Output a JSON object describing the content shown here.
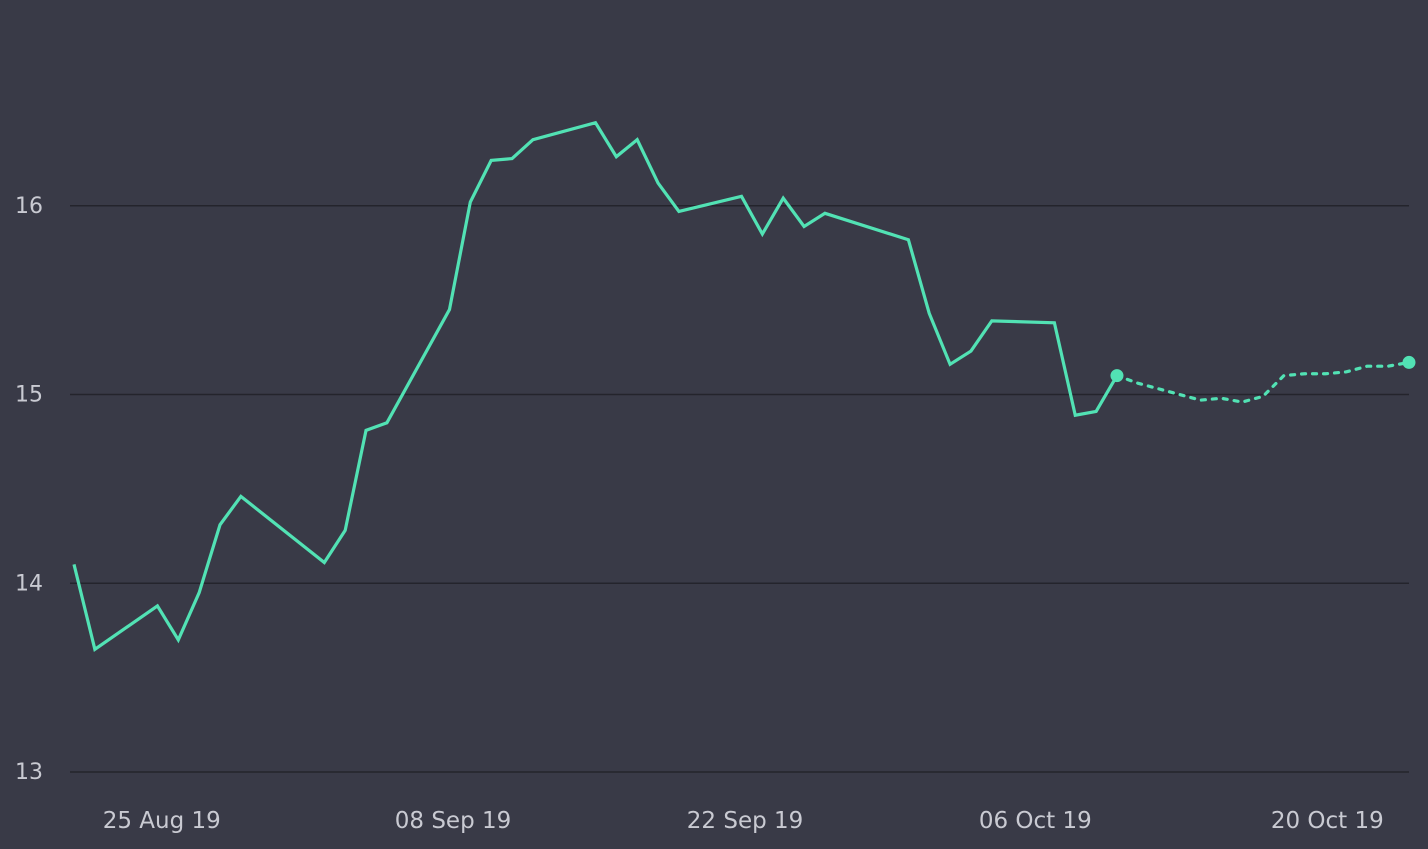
{
  "colors": {
    "background": "#393a47",
    "gridline": "#24242c",
    "series": "#52e2b4",
    "tick_text": "#c9cad2"
  },
  "chart_data": {
    "type": "line",
    "title": "",
    "xlabel": "",
    "ylabel": "",
    "ylim": [
      13,
      17
    ],
    "xlim": [
      "2019-08-23",
      "2019-10-26"
    ],
    "grid": true,
    "legend": "none",
    "yticks": [
      13,
      14,
      15,
      16
    ],
    "ytick_labels": [
      "13",
      "14",
      "15",
      "16"
    ],
    "xticks": [
      "2019-08-25",
      "2019-09-08",
      "2019-09-22",
      "2019-10-06",
      "2019-10-20"
    ],
    "xtick_labels": [
      "25 Aug 19",
      "08 Sep 19",
      "22 Sep 19",
      "06 Oct 19",
      "20 Oct 19"
    ],
    "series": [
      {
        "style": "solid",
        "x": [
          "2019-08-23",
          "2019-08-24",
          "2019-08-27",
          "2019-08-28",
          "2019-08-29",
          "2019-08-30",
          "2019-08-31",
          "2019-09-04",
          "2019-09-05",
          "2019-09-06",
          "2019-09-07",
          "2019-09-10",
          "2019-09-11",
          "2019-09-12",
          "2019-09-13",
          "2019-09-14",
          "2019-09-17",
          "2019-09-18",
          "2019-09-19",
          "2019-09-20",
          "2019-09-21",
          "2019-09-24",
          "2019-09-25",
          "2019-09-26",
          "2019-09-27",
          "2019-09-28",
          "2019-10-02",
          "2019-10-03",
          "2019-10-04",
          "2019-10-05",
          "2019-10-06",
          "2019-10-09",
          "2019-10-10",
          "2019-10-11",
          "2019-10-12"
        ],
        "y": [
          14.1,
          13.65,
          13.88,
          13.7,
          13.95,
          14.31,
          14.46,
          14.11,
          14.28,
          14.81,
          14.85,
          15.45,
          16.02,
          16.24,
          16.25,
          16.35,
          16.44,
          16.26,
          16.35,
          16.12,
          15.97,
          16.05,
          15.85,
          16.04,
          15.89,
          15.96,
          15.82,
          15.43,
          15.16,
          15.23,
          15.39,
          15.38,
          14.89,
          14.91,
          15.1
        ]
      },
      {
        "style": "dotted",
        "marker_endpoints": true,
        "x": [
          "2019-10-12",
          "2019-10-13",
          "2019-10-14",
          "2019-10-15",
          "2019-10-16",
          "2019-10-17",
          "2019-10-18",
          "2019-10-19",
          "2019-10-20",
          "2019-10-21",
          "2019-10-22",
          "2019-10-23",
          "2019-10-24",
          "2019-10-25",
          "2019-10-26"
        ],
        "y": [
          15.1,
          15.06,
          15.03,
          15.0,
          14.97,
          14.98,
          14.96,
          14.99,
          15.1,
          15.11,
          15.11,
          15.12,
          15.15,
          15.15,
          15.17
        ]
      }
    ]
  }
}
